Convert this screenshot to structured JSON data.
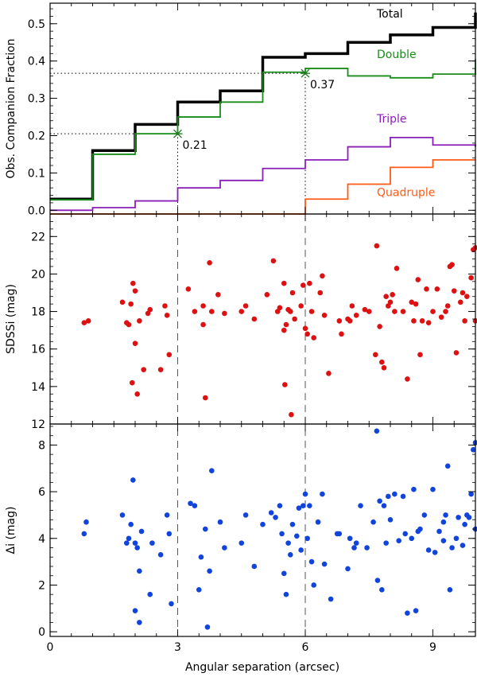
{
  "chart_data": [
    {
      "type": "line",
      "panel": "top",
      "step": true,
      "ylabel": "Obs. Companion Fraction",
      "xlabel": "",
      "xlim": [
        0,
        10
      ],
      "ylim": [
        -0.01,
        0.555
      ],
      "yticks": [
        0.0,
        0.1,
        0.2,
        0.3,
        0.4,
        0.5
      ],
      "ytick_labels": [
        "0.0",
        "0.1",
        "0.2",
        "0.3",
        "0.4",
        "0.5"
      ],
      "series": [
        {
          "name": "Total",
          "color": "#000000",
          "x": [
            0,
            1,
            2,
            3,
            4,
            5,
            6,
            7,
            8,
            9,
            10
          ],
          "y": [
            0.03,
            0.16,
            0.23,
            0.29,
            0.32,
            0.41,
            0.42,
            0.45,
            0.47,
            0.49,
            0.53
          ]
        },
        {
          "name": "Double",
          "color": "#1a8c1a",
          "x": [
            0,
            1,
            2,
            3,
            4,
            5,
            6,
            7,
            8,
            9,
            10
          ],
          "y": [
            0.028,
            0.15,
            0.205,
            0.25,
            0.29,
            0.37,
            0.38,
            0.36,
            0.355,
            0.365,
            0.405
          ]
        },
        {
          "name": "Triple",
          "color": "#8a1fb8",
          "x": [
            0,
            1,
            2,
            3,
            4,
            5,
            6,
            7,
            8,
            9,
            10
          ],
          "y": [
            0,
            0.007,
            0.025,
            0.06,
            0.08,
            0.112,
            0.135,
            0.17,
            0.195,
            0.175,
            0.17
          ]
        },
        {
          "name": "Quadruple",
          "color": "#ff5a14",
          "x": [
            0,
            6,
            7,
            8,
            9,
            10
          ],
          "y": [
            -0.01,
            0.03,
            0.07,
            0.115,
            0.135,
            0.135
          ]
        }
      ],
      "annotations": [
        {
          "label": "0.21",
          "x": 3,
          "y": 0.205
        },
        {
          "label": "0.37",
          "x": 6,
          "y": 0.367
        }
      ]
    },
    {
      "type": "scatter",
      "panel": "middle",
      "ylabel": "SDSSi (mag)",
      "xlim": [
        0,
        10
      ],
      "ylim": [
        12,
        23.2
      ],
      "yticks": [
        12,
        14,
        16,
        18,
        20,
        22
      ],
      "ytick_labels": [
        "12",
        "14",
        "16",
        "18",
        "20",
        "22"
      ],
      "color": "#dd1111",
      "points": [
        [
          0.8,
          17.4
        ],
        [
          0.9,
          17.5
        ],
        [
          1.7,
          18.5
        ],
        [
          1.8,
          17.4
        ],
        [
          1.85,
          17.3
        ],
        [
          1.9,
          18.4
        ],
        [
          1.95,
          19.5
        ],
        [
          2.0,
          19.1
        ],
        [
          1.93,
          14.2
        ],
        [
          2.0,
          16.3
        ],
        [
          2.05,
          13.6
        ],
        [
          2.1,
          17.5
        ],
        [
          2.2,
          14.9
        ],
        [
          2.3,
          17.9
        ],
        [
          2.35,
          18.1
        ],
        [
          2.6,
          14.9
        ],
        [
          2.7,
          18.3
        ],
        [
          2.75,
          17.8
        ],
        [
          2.8,
          15.7
        ],
        [
          3.25,
          19.2
        ],
        [
          3.4,
          18.0
        ],
        [
          3.6,
          17.3
        ],
        [
          3.6,
          18.3
        ],
        [
          3.65,
          13.4
        ],
        [
          3.75,
          20.6
        ],
        [
          3.8,
          18.0
        ],
        [
          3.95,
          18.9
        ],
        [
          4.1,
          17.9
        ],
        [
          4.5,
          18.0
        ],
        [
          4.6,
          18.3
        ],
        [
          4.8,
          17.6
        ],
        [
          5.1,
          18.9
        ],
        [
          5.25,
          20.7
        ],
        [
          5.35,
          18.0
        ],
        [
          5.4,
          18.2
        ],
        [
          5.5,
          19.5
        ],
        [
          5.5,
          17.0
        ],
        [
          5.55,
          17.3
        ],
        [
          5.6,
          18.1
        ],
        [
          5.65,
          18.0
        ],
        [
          5.7,
          19.0
        ],
        [
          5.75,
          17.6
        ],
        [
          5.9,
          18.3
        ],
        [
          5.95,
          19.4
        ],
        [
          6.0,
          17.1
        ],
        [
          6.05,
          16.8
        ],
        [
          6.1,
          19.5
        ],
        [
          6.15,
          18.0
        ],
        [
          6.2,
          16.6
        ],
        [
          6.35,
          19.0
        ],
        [
          6.4,
          19.9
        ],
        [
          6.45,
          17.8
        ],
        [
          6.55,
          14.7
        ],
        [
          6.8,
          17.5
        ],
        [
          6.85,
          16.8
        ],
        [
          7.0,
          17.6
        ],
        [
          7.05,
          17.5
        ],
        [
          7.1,
          18.3
        ],
        [
          7.2,
          17.8
        ],
        [
          7.4,
          18.1
        ],
        [
          7.5,
          18.0
        ],
        [
          7.65,
          15.7
        ],
        [
          7.75,
          17.2
        ],
        [
          7.8,
          15.3
        ],
        [
          7.85,
          15.0
        ],
        [
          7.9,
          18.8
        ],
        [
          7.95,
          18.3
        ],
        [
          8.0,
          18.5
        ],
        [
          8.05,
          18.9
        ],
        [
          8.1,
          18.0
        ],
        [
          8.15,
          20.3
        ],
        [
          8.3,
          18.0
        ],
        [
          8.4,
          14.4
        ],
        [
          8.5,
          18.5
        ],
        [
          8.55,
          17.5
        ],
        [
          8.6,
          18.4
        ],
        [
          8.65,
          19.7
        ],
        [
          8.7,
          15.7
        ],
        [
          8.75,
          17.5
        ],
        [
          8.85,
          19.2
        ],
        [
          8.9,
          17.4
        ],
        [
          9.0,
          18.0
        ],
        [
          9.1,
          19.2
        ],
        [
          9.2,
          17.7
        ],
        [
          9.3,
          18.0
        ],
        [
          9.35,
          18.3
        ],
        [
          9.4,
          20.4
        ],
        [
          9.45,
          20.5
        ],
        [
          9.5,
          19.1
        ],
        [
          9.55,
          15.8
        ],
        [
          9.65,
          18.5
        ],
        [
          9.7,
          19.0
        ],
        [
          9.75,
          17.5
        ],
        [
          9.8,
          18.8
        ],
        [
          9.9,
          19.8
        ],
        [
          9.95,
          21.3
        ],
        [
          10.0,
          21.4
        ],
        [
          10.0,
          17.5
        ],
        [
          5.52,
          14.1
        ],
        [
          5.67,
          12.5
        ],
        [
          7.68,
          21.5
        ]
      ]
    },
    {
      "type": "scatter",
      "panel": "bottom",
      "ylabel": "Δi (mag)",
      "xlabel": "Angular separation (arcsec)",
      "xlim": [
        0,
        10
      ],
      "ylim": [
        -0.2,
        8.9
      ],
      "yticks": [
        0,
        2,
        4,
        6,
        8
      ],
      "ytick_labels": [
        "0",
        "2",
        "4",
        "6",
        "8"
      ],
      "xticks": [
        0,
        3,
        6,
        9
      ],
      "xtick_labels": [
        "0",
        "3",
        "6",
        "9"
      ],
      "color": "#1144dd",
      "points": [
        [
          0.8,
          4.2
        ],
        [
          0.85,
          4.7
        ],
        [
          1.7,
          5.0
        ],
        [
          1.8,
          3.8
        ],
        [
          1.85,
          4.0
        ],
        [
          1.9,
          4.6
        ],
        [
          1.95,
          6.5
        ],
        [
          2.0,
          0.9
        ],
        [
          2.0,
          3.8
        ],
        [
          2.05,
          3.6
        ],
        [
          2.1,
          2.6
        ],
        [
          2.15,
          4.3
        ],
        [
          2.1,
          0.4
        ],
        [
          2.35,
          1.6
        ],
        [
          2.4,
          3.8
        ],
        [
          2.6,
          3.3
        ],
        [
          2.75,
          5.0
        ],
        [
          2.8,
          4.2
        ],
        [
          2.85,
          1.2
        ],
        [
          3.3,
          5.5
        ],
        [
          3.4,
          5.4
        ],
        [
          3.5,
          1.8
        ],
        [
          3.55,
          3.2
        ],
        [
          3.65,
          4.4
        ],
        [
          3.7,
          0.2
        ],
        [
          3.75,
          2.6
        ],
        [
          3.8,
          6.9
        ],
        [
          4.0,
          4.7
        ],
        [
          4.1,
          3.6
        ],
        [
          4.5,
          3.8
        ],
        [
          4.6,
          5.0
        ],
        [
          4.8,
          2.8
        ],
        [
          5.0,
          4.6
        ],
        [
          5.2,
          5.1
        ],
        [
          5.3,
          4.9
        ],
        [
          5.4,
          5.4
        ],
        [
          5.45,
          4.2
        ],
        [
          5.5,
          2.5
        ],
        [
          5.55,
          1.6
        ],
        [
          5.6,
          3.8
        ],
        [
          5.65,
          3.3
        ],
        [
          5.7,
          4.6
        ],
        [
          5.8,
          4.1
        ],
        [
          5.85,
          5.3
        ],
        [
          5.9,
          3.5
        ],
        [
          5.95,
          5.4
        ],
        [
          6.0,
          5.9
        ],
        [
          6.05,
          4.0
        ],
        [
          6.1,
          5.4
        ],
        [
          6.15,
          3.0
        ],
        [
          6.2,
          2.0
        ],
        [
          6.3,
          4.7
        ],
        [
          6.4,
          5.9
        ],
        [
          6.45,
          2.9
        ],
        [
          6.6,
          1.4
        ],
        [
          6.75,
          4.2
        ],
        [
          6.8,
          4.2
        ],
        [
          7.0,
          2.7
        ],
        [
          7.05,
          4.0
        ],
        [
          7.15,
          3.6
        ],
        [
          7.2,
          3.8
        ],
        [
          7.3,
          5.4
        ],
        [
          7.45,
          3.6
        ],
        [
          7.6,
          4.7
        ],
        [
          7.7,
          2.2
        ],
        [
          7.75,
          5.6
        ],
        [
          7.8,
          1.8
        ],
        [
          7.85,
          5.4
        ],
        [
          7.9,
          3.8
        ],
        [
          7.95,
          5.8
        ],
        [
          8.0,
          4.8
        ],
        [
          8.1,
          5.9
        ],
        [
          8.2,
          3.9
        ],
        [
          8.3,
          5.8
        ],
        [
          8.35,
          4.2
        ],
        [
          8.4,
          0.8
        ],
        [
          8.5,
          4.0
        ],
        [
          8.55,
          6.1
        ],
        [
          8.6,
          0.9
        ],
        [
          8.65,
          4.3
        ],
        [
          8.7,
          4.4
        ],
        [
          8.8,
          5.0
        ],
        [
          8.9,
          3.5
        ],
        [
          9.0,
          6.1
        ],
        [
          9.05,
          3.4
        ],
        [
          9.15,
          4.3
        ],
        [
          9.25,
          4.7
        ],
        [
          9.3,
          5.0
        ],
        [
          9.35,
          7.1
        ],
        [
          9.4,
          1.8
        ],
        [
          9.45,
          3.6
        ],
        [
          9.55,
          4.0
        ],
        [
          9.6,
          4.9
        ],
        [
          9.7,
          3.7
        ],
        [
          9.75,
          4.6
        ],
        [
          9.8,
          5.0
        ],
        [
          9.85,
          4.9
        ],
        [
          9.9,
          5.9
        ],
        [
          9.95,
          7.8
        ],
        [
          10.0,
          8.1
        ],
        [
          10.0,
          4.4
        ],
        [
          7.68,
          8.6
        ],
        [
          9.25,
          3.9
        ]
      ]
    }
  ]
}
